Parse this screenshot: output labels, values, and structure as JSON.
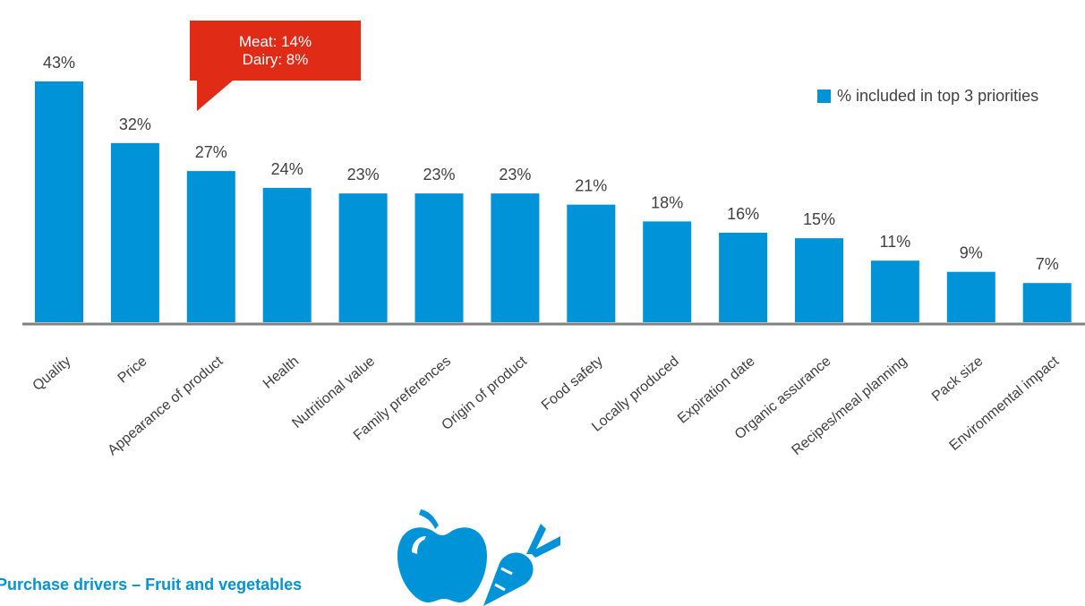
{
  "chart_data": {
    "type": "bar",
    "categories": [
      "Quality",
      "Price",
      "Appearance of product",
      "Health",
      "Nutritional value",
      "Family preferences",
      "Origin of product",
      "Food safety",
      "Locally produced",
      "Expiration date",
      "Organic assurance",
      "Recipes/meal planning",
      "Pack size",
      "Environmental impact"
    ],
    "series": [
      {
        "name": "% included in top 3 priorities",
        "values": [
          43,
          32,
          27,
          24,
          23,
          23,
          23,
          21,
          18,
          16,
          15,
          11,
          9,
          7
        ]
      }
    ],
    "value_labels": [
      "43%",
      "32%",
      "27%",
      "24%",
      "23%",
      "23%",
      "23%",
      "21%",
      "18%",
      "16%",
      "15%",
      "11%",
      "9%",
      "7%"
    ],
    "ylim": [
      0,
      43
    ],
    "grid": false,
    "legend_position": "top-right",
    "colors": {
      "bar": "#0093d7",
      "axis": "#808080",
      "callout": "#e02b16",
      "caption": "#0093d7",
      "icons": "#0093d7"
    }
  },
  "callout": {
    "line1": "Meat: 14%",
    "line2": "Dairy: 8%"
  },
  "legend": {
    "label": "% included in top 3 priorities"
  },
  "caption": "Purchase drivers – Fruit and vegetables",
  "icons": [
    "apple-icon",
    "carrot-icon"
  ]
}
